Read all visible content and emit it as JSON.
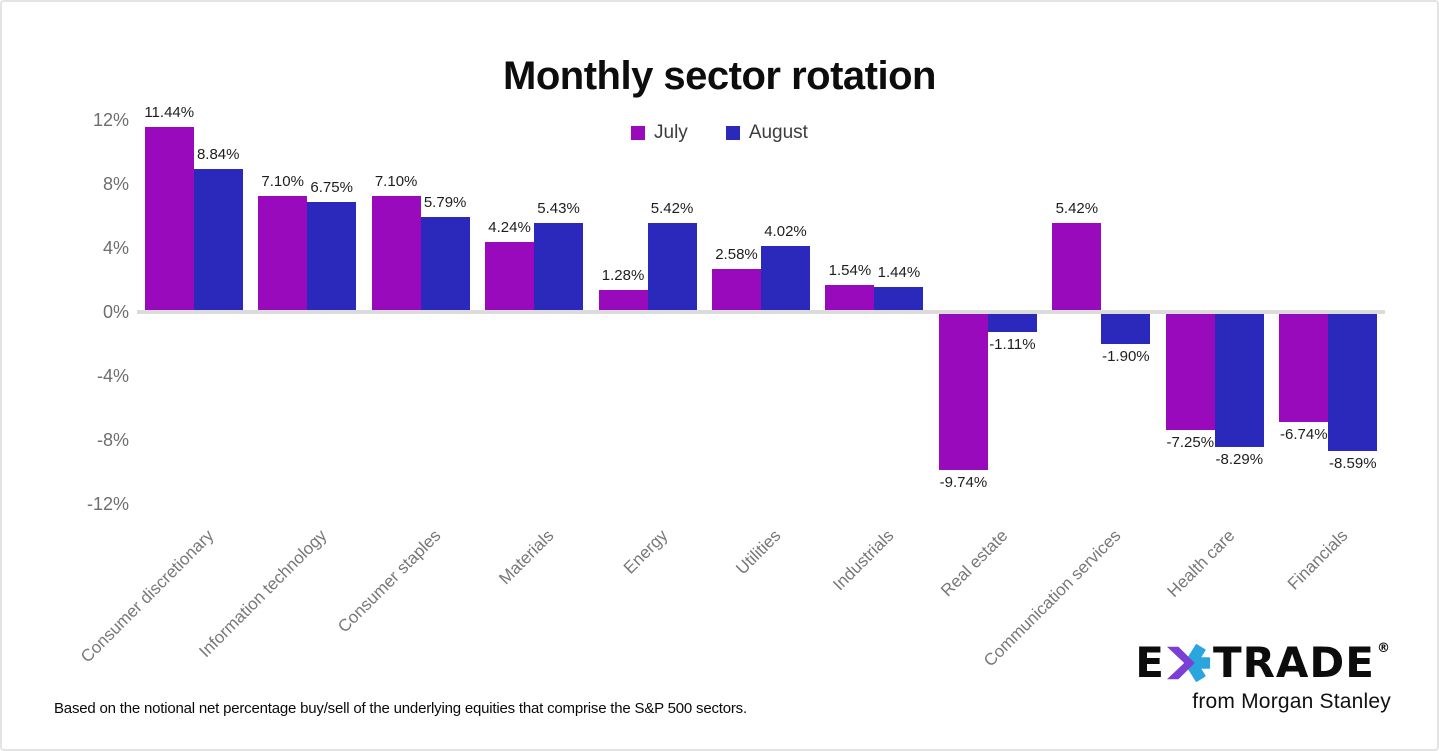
{
  "page": {
    "background": "#ffffff",
    "border_color": "#e3e3e3"
  },
  "chart_data": {
    "type": "bar",
    "title": "Monthly sector rotation",
    "categories": [
      "Consumer discretionary",
      "Information technology",
      "Consumer staples",
      "Materials",
      "Energy",
      "Utilities",
      "Industrials",
      "Real estate",
      "Communication services",
      "Health care",
      "Financials"
    ],
    "series": [
      {
        "name": "July",
        "color": "#9a0abd",
        "values": [
          11.44,
          7.1,
          7.1,
          4.24,
          1.28,
          2.58,
          1.54,
          -9.74,
          5.42,
          -7.25,
          -6.74
        ]
      },
      {
        "name": "August",
        "color": "#2b28bc",
        "values": [
          8.84,
          6.75,
          5.79,
          5.43,
          5.42,
          4.02,
          1.44,
          -1.11,
          -1.9,
          -8.29,
          -8.59
        ]
      }
    ],
    "y_ticks": [
      "12%",
      "8%",
      "4%",
      "0%",
      "-4%",
      "-8%",
      "-12%"
    ],
    "ylim": [
      -12,
      12
    ],
    "grid": false,
    "legend_position": "top-center",
    "value_label_suffix": "%",
    "axis_line_color": "#dbdbdb",
    "tick_color": "#6e6e6e",
    "category_color": "#787878"
  },
  "footer": {
    "note": "Based on the notional net percentage buy/sell of the underlying equities that comprise the S&P 500 sectors."
  },
  "branding": {
    "logo_e": "E",
    "logo_trade": "TRADE",
    "registered": "®",
    "tagline": "from Morgan Stanley",
    "asterisk_purple": "#7c3fd4",
    "asterisk_blue": "#2ba5dd"
  }
}
